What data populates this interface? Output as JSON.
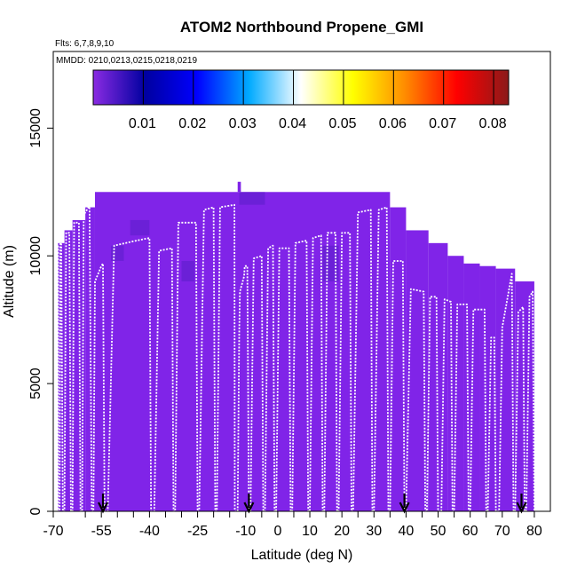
{
  "chart_data": {
    "type": "heatmap",
    "title": "ATOM2 Northbound Propene_GMI",
    "flights_label": "Flts: 6,7,8,9,10",
    "dates_label": "MMDD: 0210,0213,0215,0218,0219",
    "xlabel": "Latitude (deg N)",
    "ylabel": "Altitude (m)",
    "xlim": [
      -70,
      85
    ],
    "ylim": [
      0,
      18000
    ],
    "x_ticks": [
      -70,
      -55,
      -40,
      -25,
      -10,
      0,
      10,
      20,
      30,
      40,
      50,
      60,
      70,
      80
    ],
    "x_tick_labels": [
      "-70",
      "-55",
      "-40",
      "-25",
      "-10",
      "0",
      "10",
      "20",
      "30",
      "40",
      "50",
      "60",
      "70",
      "80"
    ],
    "x_minor_ticks": [
      -60,
      -50,
      -45,
      -35,
      -30,
      -20,
      -15,
      -5,
      5,
      15,
      25,
      35,
      45,
      55,
      65,
      75
    ],
    "y_ticks": [
      0,
      5000,
      10000,
      15000
    ],
    "y_tick_labels": [
      "0",
      "5000",
      "10000",
      "15000"
    ],
    "colorbar": {
      "min": 0.0,
      "max": 0.083,
      "ticks": [
        0.01,
        0.02,
        0.03,
        0.04,
        0.05,
        0.06,
        0.07,
        0.08
      ],
      "tick_labels": [
        "0.01",
        "0.02",
        "0.03",
        "0.04",
        "0.05",
        "0.06",
        "0.07",
        "0.08"
      ],
      "colors": [
        "#8a2be2",
        "#0000a0",
        "#0000ff",
        "#00aaff",
        "#ffffff",
        "#ffff00",
        "#ff8c00",
        "#ff0000",
        "#8b1a1a"
      ]
    },
    "field_color": "#8024e8",
    "dark_color": "#5a1ec8",
    "field_blocks": [
      {
        "x": [
          -68.5,
          -66.5
        ],
        "y": [
          0,
          10500
        ]
      },
      {
        "x": [
          -66.5,
          -64
        ],
        "y": [
          0,
          11000
        ]
      },
      {
        "x": [
          -64,
          -60
        ],
        "y": [
          0,
          11400
        ]
      },
      {
        "x": [
          -60,
          -57
        ],
        "y": [
          0,
          11900
        ]
      },
      {
        "x": [
          -57,
          35
        ],
        "y": [
          0,
          12500
        ]
      },
      {
        "x": [
          -12.5,
          -11.5
        ],
        "y": [
          12500,
          12900
        ]
      },
      {
        "x": [
          35,
          40
        ],
        "y": [
          0,
          11900
        ]
      },
      {
        "x": [
          40,
          47
        ],
        "y": [
          0,
          11000
        ]
      },
      {
        "x": [
          47,
          53
        ],
        "y": [
          0,
          10500
        ]
      },
      {
        "x": [
          53,
          58
        ],
        "y": [
          0,
          10000
        ]
      },
      {
        "x": [
          58,
          63
        ],
        "y": [
          0,
          9700
        ]
      },
      {
        "x": [
          63,
          68
        ],
        "y": [
          0,
          9600
        ]
      },
      {
        "x": [
          68,
          74
        ],
        "y": [
          0,
          9500
        ]
      },
      {
        "x": [
          74,
          80
        ],
        "y": [
          0,
          9000
        ]
      }
    ],
    "dark_patches": [
      {
        "x": [
          -12,
          -4
        ],
        "y": [
          12000,
          12500
        ]
      },
      {
        "x": [
          -52,
          -48
        ],
        "y": [
          9800,
          10400
        ]
      },
      {
        "x": [
          -30,
          -26
        ],
        "y": [
          9000,
          9800
        ]
      },
      {
        "x": [
          14,
          19
        ],
        "y": [
          9000,
          10400
        ]
      },
      {
        "x": [
          -46,
          -40
        ],
        "y": [
          10800,
          11400
        ]
      }
    ],
    "flight_track": [
      [
        -68.5,
        10400
      ],
      [
        -68.5,
        0
      ],
      [
        -68,
        0
      ],
      [
        -67.8,
        10500
      ],
      [
        -67.5,
        10500
      ],
      [
        -67,
        0
      ],
      [
        -66.5,
        0
      ],
      [
        -66,
        10900
      ],
      [
        -65,
        10900
      ],
      [
        -64.5,
        0
      ],
      [
        -64,
        0
      ],
      [
        -63.5,
        11300
      ],
      [
        -62,
        11300
      ],
      [
        -61.5,
        0
      ],
      [
        -61,
        0
      ],
      [
        -60.5,
        11600
      ],
      [
        -59,
        11900
      ],
      [
        -58.7,
        12000
      ],
      [
        -58,
        0
      ],
      [
        -57.5,
        0
      ],
      [
        -57,
        9000
      ],
      [
        -55,
        9600
      ],
      [
        -54.5,
        9700
      ],
      [
        -54,
        0
      ],
      [
        -53,
        0
      ],
      [
        -51,
        10400
      ],
      [
        -44,
        10600
      ],
      [
        -40,
        10700
      ],
      [
        -39.5,
        0
      ],
      [
        -38.5,
        0
      ],
      [
        -37,
        10200
      ],
      [
        -33,
        10300
      ],
      [
        -32.5,
        0
      ],
      [
        -32,
        0
      ],
      [
        -31,
        11300
      ],
      [
        -25.5,
        11300
      ],
      [
        -25,
        0
      ],
      [
        -24.5,
        0
      ],
      [
        -23,
        11800
      ],
      [
        -20,
        11900
      ],
      [
        -19.5,
        0
      ],
      [
        -19,
        0
      ],
      [
        -18,
        11900
      ],
      [
        -13.5,
        12000
      ],
      [
        -13.4,
        0
      ],
      [
        -12.5,
        0
      ],
      [
        -12,
        7000
      ],
      [
        -11.8,
        8600
      ],
      [
        -10.5,
        9200
      ],
      [
        -10.3,
        9600
      ],
      [
        -9.5,
        9600
      ],
      [
        -9,
        0
      ],
      [
        -8.5,
        0
      ],
      [
        -7.5,
        9900
      ],
      [
        -5,
        10000
      ],
      [
        -4.5,
        0
      ],
      [
        -4,
        0
      ],
      [
        -3,
        10300
      ],
      [
        -1.5,
        10400
      ],
      [
        -1,
        0
      ],
      [
        -0.5,
        0
      ],
      [
        0.5,
        10300
      ],
      [
        3.5,
        10300
      ],
      [
        4,
        0
      ],
      [
        4.5,
        0
      ],
      [
        5.5,
        10500
      ],
      [
        9,
        10600
      ],
      [
        9.5,
        0
      ],
      [
        10,
        0
      ],
      [
        11,
        10700
      ],
      [
        13.5,
        10800
      ],
      [
        14,
        0
      ],
      [
        14.5,
        0
      ],
      [
        15.5,
        10900
      ],
      [
        18,
        10900
      ],
      [
        18.5,
        0
      ],
      [
        19,
        0
      ],
      [
        20,
        10900
      ],
      [
        22.5,
        10900
      ],
      [
        23,
        0
      ],
      [
        23.5,
        0
      ],
      [
        25,
        11700
      ],
      [
        29,
        11800
      ],
      [
        29.5,
        0
      ],
      [
        30,
        0
      ],
      [
        31.5,
        11800
      ],
      [
        34,
        11900
      ],
      [
        34.5,
        0
      ],
      [
        35,
        0
      ],
      [
        36,
        9800
      ],
      [
        39,
        9800
      ],
      [
        39.5,
        0
      ],
      [
        40,
        0
      ],
      [
        41.5,
        8700
      ],
      [
        45.5,
        8600
      ],
      [
        46,
        0
      ],
      [
        46.5,
        0
      ],
      [
        47.5,
        8400
      ],
      [
        49.5,
        8400
      ],
      [
        50,
        0
      ],
      [
        51,
        0
      ],
      [
        52,
        8300
      ],
      [
        54,
        8200
      ],
      [
        54.5,
        0
      ],
      [
        55,
        0
      ],
      [
        56,
        8100
      ],
      [
        59,
        8100
      ],
      [
        59.5,
        0
      ],
      [
        60,
        0
      ],
      [
        61,
        7900
      ],
      [
        64.5,
        7900
      ],
      [
        65,
        0
      ],
      [
        65.5,
        0
      ],
      [
        66.5,
        6800
      ],
      [
        67.5,
        6800
      ],
      [
        68,
        0
      ],
      [
        69,
        0
      ],
      [
        70,
        7200
      ],
      [
        73,
        9300
      ],
      [
        73.5,
        0
      ],
      [
        74,
        0
      ],
      [
        75,
        7800
      ],
      [
        76.5,
        8000
      ],
      [
        77,
        0
      ],
      [
        77.5,
        0
      ],
      [
        78.5,
        8400
      ],
      [
        79.5,
        8600
      ],
      [
        80,
        0
      ]
    ],
    "arrows_lat": [
      -54.5,
      -9,
      39.5,
      76
    ]
  }
}
